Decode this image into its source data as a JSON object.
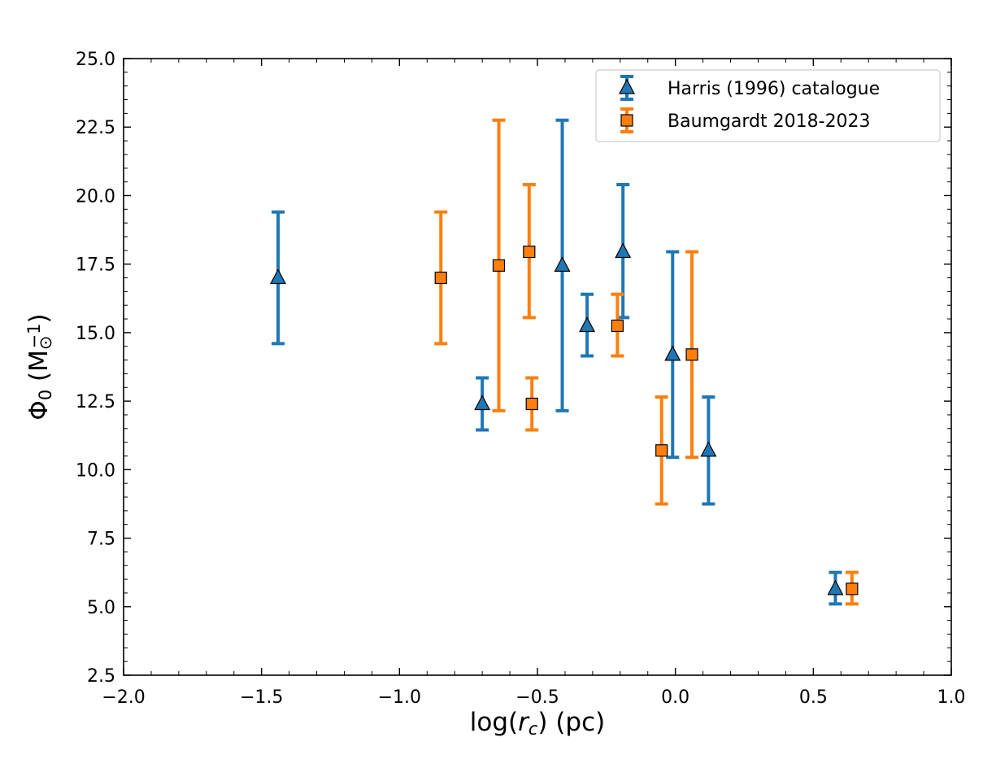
{
  "chart_data": {
    "type": "scatter",
    "xlabel": "log(r_c) (pc)",
    "ylabel": "Φ_0 (M_⊙^−1)",
    "xlim": [
      -2.0,
      1.0
    ],
    "ylim": [
      2.5,
      25.0
    ],
    "x_ticks": [
      -2.0,
      -1.5,
      -1.0,
      -0.5,
      0.0,
      0.5,
      1.0
    ],
    "x_tick_labels": [
      "−2.0",
      "−1.5",
      "−1.0",
      "−0.5",
      "0.0",
      "0.5",
      "1.0"
    ],
    "y_ticks": [
      2.5,
      5.0,
      7.5,
      10.0,
      12.5,
      15.0,
      17.5,
      20.0,
      22.5,
      25.0
    ],
    "y_tick_labels": [
      "2.5",
      "5.0",
      "7.5",
      "10.0",
      "12.5",
      "15.0",
      "17.5",
      "20.0",
      "22.5",
      "25.0"
    ],
    "grid": false,
    "legend_position": "top-right",
    "series": [
      {
        "name": "Harris (1996) catalogue",
        "marker": "triangle",
        "color": "#1f77b4",
        "points": [
          {
            "x": -1.44,
            "y": 17.0,
            "ylo": 14.6,
            "yhi": 19.4
          },
          {
            "x": -0.7,
            "y": 12.4,
            "ylo": 11.45,
            "yhi": 13.35
          },
          {
            "x": -0.41,
            "y": 17.45,
            "ylo": 12.15,
            "yhi": 22.75
          },
          {
            "x": -0.32,
            "y": 15.25,
            "ylo": 14.15,
            "yhi": 16.4
          },
          {
            "x": -0.19,
            "y": 17.95,
            "ylo": 15.55,
            "yhi": 20.4
          },
          {
            "x": -0.01,
            "y": 14.2,
            "ylo": 10.45,
            "yhi": 17.95
          },
          {
            "x": 0.12,
            "y": 10.7,
            "ylo": 8.75,
            "yhi": 12.65
          },
          {
            "x": 0.58,
            "y": 5.65,
            "ylo": 5.1,
            "yhi": 6.25
          }
        ]
      },
      {
        "name": "Baumgardt 2018-2023",
        "marker": "square",
        "color": "#ff7f0e",
        "points": [
          {
            "x": -0.85,
            "y": 17.0,
            "ylo": 14.6,
            "yhi": 19.4
          },
          {
            "x": -0.64,
            "y": 17.45,
            "ylo": 12.15,
            "yhi": 22.75
          },
          {
            "x": -0.53,
            "y": 17.95,
            "ylo": 15.55,
            "yhi": 20.4
          },
          {
            "x": -0.52,
            "y": 12.4,
            "ylo": 11.45,
            "yhi": 13.35
          },
          {
            "x": -0.21,
            "y": 15.25,
            "ylo": 14.15,
            "yhi": 16.4
          },
          {
            "x": -0.05,
            "y": 10.7,
            "ylo": 8.75,
            "yhi": 12.65
          },
          {
            "x": 0.06,
            "y": 14.2,
            "ylo": 10.45,
            "yhi": 17.95
          },
          {
            "x": 0.64,
            "y": 5.65,
            "ylo": 5.1,
            "yhi": 6.25
          }
        ]
      }
    ]
  }
}
